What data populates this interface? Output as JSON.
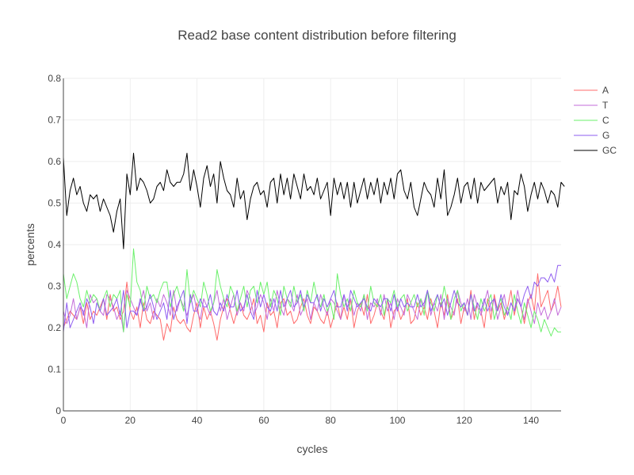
{
  "chart_data": {
    "type": "line",
    "title": "Read2 base content distribution before filtering",
    "xlabel": "cycles",
    "ylabel": "percents",
    "xlim": [
      0,
      149
    ],
    "ylim": [
      0,
      0.8
    ],
    "x_ticks": [
      0,
      20,
      40,
      60,
      80,
      100,
      120,
      140
    ],
    "y_ticks": [
      0,
      0.1,
      0.2,
      0.3,
      0.4,
      0.5,
      0.6,
      0.7,
      0.8
    ],
    "grid": true,
    "legend_position": "right",
    "series": [
      {
        "name": "A",
        "color": "#ff6b6b",
        "values": [
          0.2,
          0.22,
          0.24,
          0.23,
          0.22,
          0.25,
          0.21,
          0.26,
          0.22,
          0.24,
          0.23,
          0.25,
          0.27,
          0.22,
          0.28,
          0.24,
          0.25,
          0.22,
          0.24,
          0.31,
          0.24,
          0.22,
          0.25,
          0.2,
          0.26,
          0.22,
          0.21,
          0.24,
          0.23,
          0.22,
          0.17,
          0.21,
          0.19,
          0.25,
          0.22,
          0.21,
          0.22,
          0.2,
          0.19,
          0.23,
          0.26,
          0.2,
          0.25,
          0.22,
          0.24,
          0.21,
          0.17,
          0.22,
          0.25,
          0.27,
          0.24,
          0.21,
          0.24,
          0.26,
          0.23,
          0.22,
          0.24,
          0.27,
          0.21,
          0.23,
          0.19,
          0.26,
          0.23,
          0.24,
          0.2,
          0.26,
          0.27,
          0.23,
          0.24,
          0.21,
          0.22,
          0.25,
          0.27,
          0.23,
          0.21,
          0.25,
          0.24,
          0.22,
          0.21,
          0.24,
          0.2,
          0.23,
          0.26,
          0.22,
          0.25,
          0.22,
          0.27,
          0.2,
          0.24,
          0.26,
          0.23,
          0.28,
          0.21,
          0.23,
          0.26,
          0.24,
          0.22,
          0.27,
          0.2,
          0.24,
          0.25,
          0.22,
          0.24,
          0.27,
          0.21,
          0.22,
          0.26,
          0.23,
          0.25,
          0.22,
          0.27,
          0.24,
          0.2,
          0.26,
          0.23,
          0.28,
          0.22,
          0.24,
          0.27,
          0.21,
          0.25,
          0.23,
          0.29,
          0.22,
          0.26,
          0.24,
          0.2,
          0.27,
          0.22,
          0.28,
          0.24,
          0.26,
          0.22,
          0.25,
          0.29,
          0.23,
          0.27,
          0.25,
          0.21,
          0.26,
          0.28,
          0.24,
          0.33,
          0.25,
          0.27,
          0.29,
          0.24,
          0.26,
          0.3,
          0.25
        ]
      },
      {
        "name": "T",
        "color": "#c36bd9",
        "values": [
          0.24,
          0.21,
          0.23,
          0.27,
          0.22,
          0.25,
          0.24,
          0.2,
          0.28,
          0.26,
          0.27,
          0.24,
          0.23,
          0.28,
          0.27,
          0.25,
          0.22,
          0.24,
          0.19,
          0.29,
          0.27,
          0.25,
          0.23,
          0.26,
          0.29,
          0.24,
          0.26,
          0.22,
          0.27,
          0.25,
          0.28,
          0.26,
          0.23,
          0.29,
          0.24,
          0.27,
          0.25,
          0.23,
          0.26,
          0.28,
          0.24,
          0.22,
          0.27,
          0.25,
          0.23,
          0.26,
          0.29,
          0.24,
          0.27,
          0.22,
          0.25,
          0.28,
          0.23,
          0.26,
          0.24,
          0.29,
          0.27,
          0.23,
          0.25,
          0.28,
          0.26,
          0.22,
          0.27,
          0.24,
          0.29,
          0.25,
          0.23,
          0.27,
          0.26,
          0.24,
          0.28,
          0.23,
          0.25,
          0.27,
          0.22,
          0.26,
          0.24,
          0.28,
          0.25,
          0.23,
          0.27,
          0.26,
          0.24,
          0.22,
          0.28,
          0.25,
          0.27,
          0.23,
          0.26,
          0.24,
          0.28,
          0.22,
          0.26,
          0.25,
          0.27,
          0.23,
          0.28,
          0.24,
          0.26,
          0.22,
          0.27,
          0.25,
          0.23,
          0.28,
          0.26,
          0.24,
          0.22,
          0.27,
          0.25,
          0.29,
          0.23,
          0.26,
          0.24,
          0.28,
          0.22,
          0.27,
          0.25,
          0.23,
          0.29,
          0.26,
          0.24,
          0.27,
          0.22,
          0.28,
          0.25,
          0.23,
          0.26,
          0.29,
          0.24,
          0.27,
          0.22,
          0.25,
          0.28,
          0.23,
          0.26,
          0.24,
          0.29,
          0.25,
          0.22,
          0.27,
          0.24,
          0.21,
          0.26,
          0.23,
          0.25,
          0.22,
          0.24,
          0.27,
          0.23,
          0.25
        ]
      },
      {
        "name": "C",
        "color": "#6bf06b",
        "values": [
          0.33,
          0.27,
          0.3,
          0.33,
          0.31,
          0.27,
          0.25,
          0.29,
          0.26,
          0.28,
          0.27,
          0.24,
          0.27,
          0.29,
          0.25,
          0.28,
          0.27,
          0.29,
          0.19,
          0.28,
          0.25,
          0.39,
          0.31,
          0.29,
          0.24,
          0.3,
          0.27,
          0.28,
          0.26,
          0.29,
          0.31,
          0.31,
          0.25,
          0.28,
          0.3,
          0.27,
          0.24,
          0.34,
          0.26,
          0.29,
          0.27,
          0.25,
          0.31,
          0.28,
          0.24,
          0.26,
          0.34,
          0.3,
          0.27,
          0.25,
          0.3,
          0.28,
          0.24,
          0.27,
          0.3,
          0.25,
          0.29,
          0.3,
          0.26,
          0.31,
          0.28,
          0.31,
          0.25,
          0.29,
          0.27,
          0.23,
          0.3,
          0.27,
          0.25,
          0.3,
          0.26,
          0.28,
          0.24,
          0.29,
          0.26,
          0.31,
          0.27,
          0.25,
          0.28,
          0.24,
          0.26,
          0.22,
          0.33,
          0.28,
          0.25,
          0.27,
          0.24,
          0.29,
          0.26,
          0.25,
          0.28,
          0.24,
          0.3,
          0.26,
          0.25,
          0.28,
          0.23,
          0.27,
          0.26,
          0.29,
          0.25,
          0.27,
          0.28,
          0.24,
          0.26,
          0.28,
          0.25,
          0.27,
          0.23,
          0.29,
          0.26,
          0.24,
          0.28,
          0.25,
          0.3,
          0.26,
          0.22,
          0.27,
          0.29,
          0.24,
          0.26,
          0.23,
          0.28,
          0.25,
          0.22,
          0.27,
          0.24,
          0.26,
          0.28,
          0.22,
          0.25,
          0.27,
          0.23,
          0.25,
          0.22,
          0.28,
          0.24,
          0.21,
          0.26,
          0.23,
          0.2,
          0.24,
          0.22,
          0.19,
          0.22,
          0.2,
          0.18,
          0.2,
          0.19,
          0.19
        ]
      },
      {
        "name": "G",
        "color": "#8e5cf0",
        "values": [
          0.19,
          0.26,
          0.2,
          0.22,
          0.24,
          0.26,
          0.23,
          0.27,
          0.25,
          0.21,
          0.26,
          0.24,
          0.27,
          0.23,
          0.24,
          0.25,
          0.27,
          0.23,
          0.29,
          0.2,
          0.24,
          0.24,
          0.23,
          0.27,
          0.24,
          0.25,
          0.28,
          0.25,
          0.22,
          0.24,
          0.26,
          0.22,
          0.29,
          0.22,
          0.25,
          0.27,
          0.29,
          0.21,
          0.28,
          0.24,
          0.24,
          0.27,
          0.25,
          0.25,
          0.28,
          0.24,
          0.23,
          0.26,
          0.24,
          0.28,
          0.25,
          0.25,
          0.29,
          0.24,
          0.25,
          0.28,
          0.24,
          0.22,
          0.29,
          0.25,
          0.28,
          0.25,
          0.24,
          0.27,
          0.24,
          0.29,
          0.25,
          0.27,
          0.29,
          0.25,
          0.26,
          0.29,
          0.25,
          0.28,
          0.26,
          0.26,
          0.28,
          0.24,
          0.27,
          0.25,
          0.27,
          0.29,
          0.25,
          0.25,
          0.28,
          0.24,
          0.29,
          0.27,
          0.25,
          0.26,
          0.27,
          0.25,
          0.24,
          0.27,
          0.26,
          0.25,
          0.27,
          0.27,
          0.24,
          0.28,
          0.24,
          0.27,
          0.25,
          0.26,
          0.25,
          0.25,
          0.28,
          0.25,
          0.26,
          0.29,
          0.24,
          0.26,
          0.28,
          0.25,
          0.27,
          0.23,
          0.26,
          0.29,
          0.26,
          0.25,
          0.26,
          0.23,
          0.28,
          0.24,
          0.26,
          0.24,
          0.27,
          0.24,
          0.26,
          0.27,
          0.24,
          0.28,
          0.25,
          0.23,
          0.26,
          0.24,
          0.27,
          0.25,
          0.28,
          0.3,
          0.27,
          0.31,
          0.3,
          0.32,
          0.32,
          0.31,
          0.33,
          0.31,
          0.35,
          0.35
        ]
      },
      {
        "name": "GC",
        "color": "#000000",
        "values": [
          0.61,
          0.47,
          0.53,
          0.56,
          0.52,
          0.54,
          0.5,
          0.48,
          0.52,
          0.51,
          0.52,
          0.48,
          0.51,
          0.49,
          0.47,
          0.43,
          0.48,
          0.51,
          0.39,
          0.57,
          0.52,
          0.62,
          0.53,
          0.56,
          0.55,
          0.53,
          0.5,
          0.51,
          0.54,
          0.55,
          0.53,
          0.58,
          0.55,
          0.54,
          0.55,
          0.55,
          0.57,
          0.62,
          0.53,
          0.58,
          0.54,
          0.49,
          0.56,
          0.59,
          0.54,
          0.57,
          0.5,
          0.6,
          0.56,
          0.53,
          0.52,
          0.49,
          0.56,
          0.51,
          0.53,
          0.46,
          0.51,
          0.54,
          0.55,
          0.52,
          0.53,
          0.49,
          0.55,
          0.56,
          0.5,
          0.57,
          0.52,
          0.56,
          0.51,
          0.57,
          0.54,
          0.51,
          0.57,
          0.53,
          0.54,
          0.52,
          0.56,
          0.51,
          0.53,
          0.55,
          0.47,
          0.56,
          0.52,
          0.55,
          0.51,
          0.55,
          0.49,
          0.55,
          0.5,
          0.53,
          0.56,
          0.51,
          0.55,
          0.52,
          0.56,
          0.5,
          0.55,
          0.52,
          0.56,
          0.51,
          0.57,
          0.58,
          0.53,
          0.51,
          0.55,
          0.49,
          0.47,
          0.51,
          0.55,
          0.53,
          0.52,
          0.49,
          0.56,
          0.51,
          0.58,
          0.47,
          0.49,
          0.52,
          0.56,
          0.5,
          0.54,
          0.55,
          0.51,
          0.56,
          0.5,
          0.55,
          0.53,
          0.54,
          0.55,
          0.56,
          0.5,
          0.54,
          0.52,
          0.55,
          0.46,
          0.53,
          0.52,
          0.57,
          0.54,
          0.48,
          0.52,
          0.55,
          0.51,
          0.55,
          0.53,
          0.5,
          0.53,
          0.52,
          0.49,
          0.55,
          0.54
        ]
      }
    ]
  }
}
